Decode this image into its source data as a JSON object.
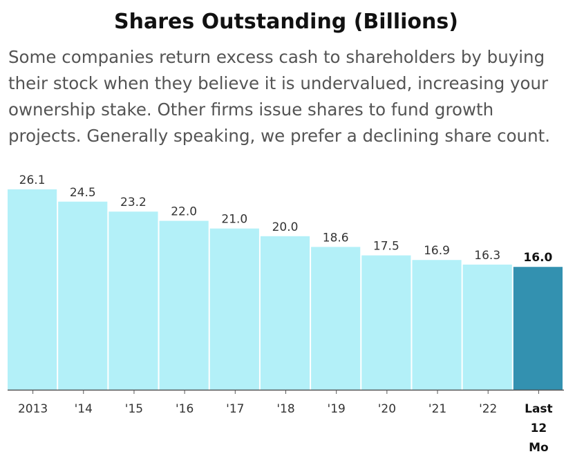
{
  "title": "Shares Outstanding (Billions)",
  "subtitle": "Some companies return excess cash to shareholders by buying their stock when they believe it is undervalued, increasing your ownership stake. Other firms issue shares to fund growth projects. Generally speaking, we prefer a declining share count.",
  "colors": {
    "bar": "#b3f0f8",
    "highlight_bar": "#3391b0",
    "axis": "#555555"
  },
  "chart_data": {
    "type": "bar",
    "categories": [
      "2013",
      "'14",
      "'15",
      "'16",
      "'17",
      "'18",
      "'19",
      "'20",
      "'21",
      "'22",
      "Last 12 Mo"
    ],
    "category_lines": [
      [
        "2013"
      ],
      [
        "'14"
      ],
      [
        "'15"
      ],
      [
        "'16"
      ],
      [
        "'17"
      ],
      [
        "'18"
      ],
      [
        "'19"
      ],
      [
        "'20"
      ],
      [
        "'21"
      ],
      [
        "'22"
      ],
      [
        "Last",
        "12",
        "Mo"
      ]
    ],
    "values": [
      26.1,
      24.5,
      23.2,
      22.0,
      21.0,
      20.0,
      18.6,
      17.5,
      16.9,
      16.3,
      16.0
    ],
    "value_labels": [
      "26.1",
      "24.5",
      "23.2",
      "22.0",
      "21.0",
      "20.0",
      "18.6",
      "17.5",
      "16.9",
      "16.3",
      "16.0"
    ],
    "highlight_index": 10,
    "ylim": [
      0,
      26.1
    ],
    "grid": false,
    "legend": "none"
  }
}
